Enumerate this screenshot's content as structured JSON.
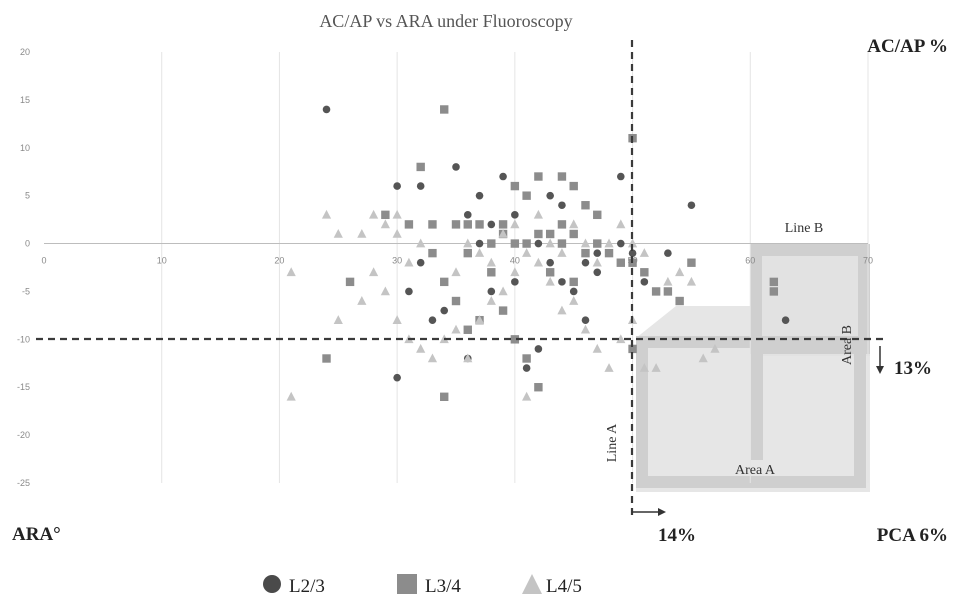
{
  "chart_data": {
    "type": "scatter",
    "title": "AC/AP vs ARA under Fluoroscopy",
    "xlabel": "ARA°",
    "ylabel": "AC/AP %",
    "xlim": [
      0,
      70
    ],
    "ylim": [
      -25,
      20
    ],
    "x_ticks": [
      0,
      10,
      20,
      30,
      40,
      50,
      60,
      70
    ],
    "y_ticks": [
      20,
      15,
      10,
      5,
      0,
      -5,
      -10,
      -15,
      -20,
      -25
    ],
    "grid": "vertical",
    "legend_position": "bottom",
    "threshold_lines": [
      {
        "label": "Line A",
        "axis": "x",
        "value": 50
      },
      {
        "label": "Line B",
        "axis": "y",
        "value": -10
      }
    ],
    "annotations": [
      {
        "text": "Line A"
      },
      {
        "text": "Line B"
      },
      {
        "text": "Area A"
      },
      {
        "text": "Area B"
      },
      {
        "text": "13%"
      },
      {
        "text": "14%"
      },
      {
        "text": "PCA 6%"
      }
    ],
    "colors": {
      "L2/3": "#555555",
      "L3/4": "#8c8c8c",
      "L4/5": "#c4c4c4",
      "area": "#d6d6d6"
    },
    "series": [
      {
        "name": "L2/3",
        "marker": "circle",
        "points": [
          [
            24,
            14
          ],
          [
            30,
            6
          ],
          [
            32,
            6
          ],
          [
            35,
            8
          ],
          [
            37,
            5
          ],
          [
            37,
            0
          ],
          [
            38,
            2
          ],
          [
            39,
            7
          ],
          [
            40,
            3
          ],
          [
            41,
            0
          ],
          [
            42,
            0
          ],
          [
            43,
            5
          ],
          [
            44,
            4
          ],
          [
            45,
            1
          ],
          [
            46,
            -2
          ],
          [
            47,
            -1
          ],
          [
            49,
            7
          ],
          [
            50,
            -1
          ],
          [
            51,
            -4
          ],
          [
            52,
            -5
          ],
          [
            53,
            -1
          ],
          [
            55,
            4
          ],
          [
            63,
            -8
          ],
          [
            31,
            -5
          ],
          [
            33,
            -8
          ],
          [
            34,
            -7
          ],
          [
            38,
            -5
          ],
          [
            41,
            -13
          ],
          [
            30,
            -14
          ],
          [
            42,
            -11
          ],
          [
            36,
            3
          ],
          [
            44,
            -4
          ],
          [
            32,
            -2
          ],
          [
            36,
            -12
          ],
          [
            49,
            0
          ],
          [
            47,
            -3
          ],
          [
            46,
            -8
          ],
          [
            40,
            -4
          ],
          [
            43,
            -2
          ],
          [
            45,
            -5
          ]
        ]
      },
      {
        "name": "L3/4",
        "marker": "square",
        "points": [
          [
            34,
            14
          ],
          [
            50,
            11
          ],
          [
            32,
            8
          ],
          [
            40,
            6
          ],
          [
            41,
            5
          ],
          [
            42,
            7
          ],
          [
            44,
            7
          ],
          [
            45,
            6
          ],
          [
            46,
            4
          ],
          [
            47,
            3
          ],
          [
            29,
            3
          ],
          [
            31,
            2
          ],
          [
            33,
            2
          ],
          [
            35,
            2
          ],
          [
            36,
            2
          ],
          [
            37,
            2
          ],
          [
            39,
            1
          ],
          [
            40,
            0
          ],
          [
            41,
            0
          ],
          [
            42,
            1
          ],
          [
            43,
            1
          ],
          [
            44,
            0
          ],
          [
            45,
            1
          ],
          [
            47,
            0
          ],
          [
            48,
            -1
          ],
          [
            49,
            -2
          ],
          [
            50,
            -2
          ],
          [
            51,
            -3
          ],
          [
            52,
            -5
          ],
          [
            53,
            -5
          ],
          [
            54,
            -6
          ],
          [
            55,
            -2
          ],
          [
            34,
            -4
          ],
          [
            35,
            -6
          ],
          [
            36,
            -9
          ],
          [
            37,
            -8
          ],
          [
            39,
            -7
          ],
          [
            40,
            -10
          ],
          [
            41,
            -12
          ],
          [
            42,
            -15
          ],
          [
            34,
            -16
          ],
          [
            24,
            -12
          ],
          [
            26,
            -4
          ],
          [
            50,
            -11
          ],
          [
            62,
            -4
          ],
          [
            62,
            -5
          ],
          [
            43,
            -3
          ],
          [
            45,
            -4
          ],
          [
            46,
            -1
          ],
          [
            38,
            -3
          ],
          [
            33,
            -1
          ],
          [
            36,
            -1
          ],
          [
            38,
            0
          ],
          [
            39,
            2
          ],
          [
            44,
            2
          ]
        ]
      },
      {
        "name": "L4/5",
        "marker": "triangle",
        "points": [
          [
            24,
            3
          ],
          [
            25,
            1
          ],
          [
            27,
            1
          ],
          [
            28,
            3
          ],
          [
            29,
            2
          ],
          [
            30,
            3
          ],
          [
            30,
            1
          ],
          [
            31,
            -2
          ],
          [
            32,
            0
          ],
          [
            21,
            -3
          ],
          [
            25,
            -8
          ],
          [
            27,
            -6
          ],
          [
            28,
            -3
          ],
          [
            29,
            -5
          ],
          [
            30,
            -8
          ],
          [
            31,
            -10
          ],
          [
            32,
            -11
          ],
          [
            33,
            -12
          ],
          [
            34,
            -10
          ],
          [
            35,
            -9
          ],
          [
            36,
            -12
          ],
          [
            37,
            -8
          ],
          [
            38,
            -6
          ],
          [
            39,
            -5
          ],
          [
            40,
            -3
          ],
          [
            41,
            -1
          ],
          [
            42,
            -2
          ],
          [
            43,
            -4
          ],
          [
            44,
            -7
          ],
          [
            45,
            -6
          ],
          [
            46,
            -9
          ],
          [
            47,
            -11
          ],
          [
            48,
            -13
          ],
          [
            49,
            -10
          ],
          [
            50,
            -8
          ],
          [
            51,
            -13
          ],
          [
            52,
            -13
          ],
          [
            53,
            -4
          ],
          [
            54,
            -3
          ],
          [
            55,
            -4
          ],
          [
            56,
            -12
          ],
          [
            57,
            -11
          ],
          [
            21,
            -16
          ],
          [
            41,
            -16
          ],
          [
            35,
            -3
          ],
          [
            36,
            0
          ],
          [
            37,
            -1
          ],
          [
            38,
            -2
          ],
          [
            39,
            1
          ],
          [
            40,
            2
          ],
          [
            42,
            3
          ],
          [
            43,
            0
          ],
          [
            44,
            -1
          ],
          [
            45,
            2
          ],
          [
            46,
            0
          ],
          [
            47,
            -2
          ],
          [
            48,
            0
          ],
          [
            49,
            2
          ],
          [
            50,
            0
          ],
          [
            51,
            -1
          ]
        ]
      }
    ]
  }
}
